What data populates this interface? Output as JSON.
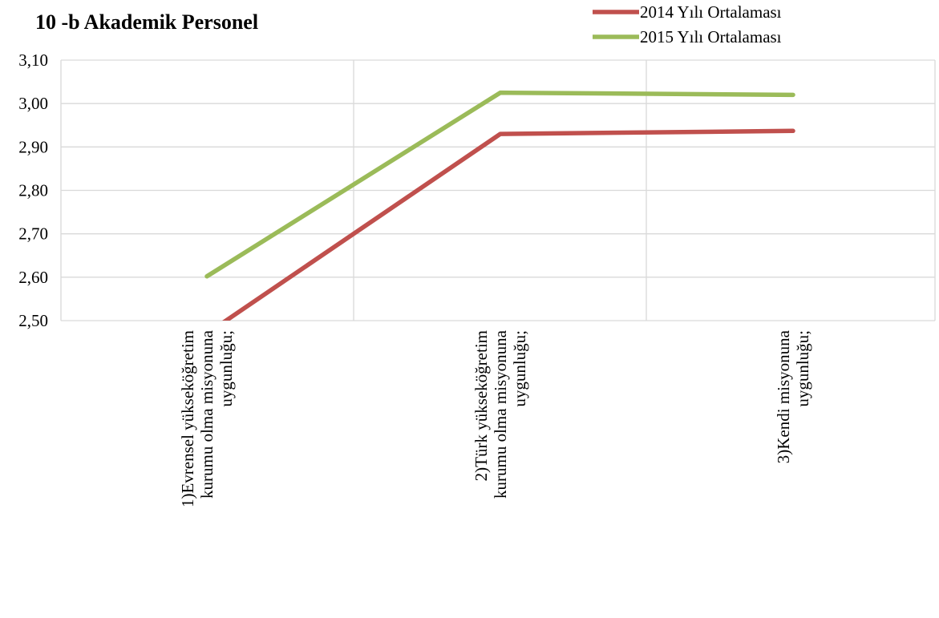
{
  "chart_data": {
    "type": "line",
    "title": "10 -b Akademik Personel",
    "categories": [
      [
        "1)Evrensel yükseköğretim",
        "kurumu olma misyonuna",
        "uygunluğu;"
      ],
      [
        "2)Türk yükseköğretim",
        "kurumu olma misyonuna",
        "uygunluğu;"
      ],
      [
        "3)Kendi misyonuna",
        "uygunluğu;"
      ]
    ],
    "series": [
      {
        "name": "2014 Yılı Ortalaması",
        "color": "#c0504d",
        "values": [
          2.47,
          2.93,
          2.937
        ]
      },
      {
        "name": "2015 Yılı Ortalaması",
        "color": "#9bbb59",
        "values": [
          2.602,
          3.025,
          3.02
        ]
      }
    ],
    "ylim": [
      2.5,
      3.1
    ],
    "yticks": [
      "2,50",
      "2,60",
      "2,70",
      "2,80",
      "2,90",
      "3,00",
      "3,10"
    ],
    "grid": true,
    "legend_position": "top-right"
  }
}
